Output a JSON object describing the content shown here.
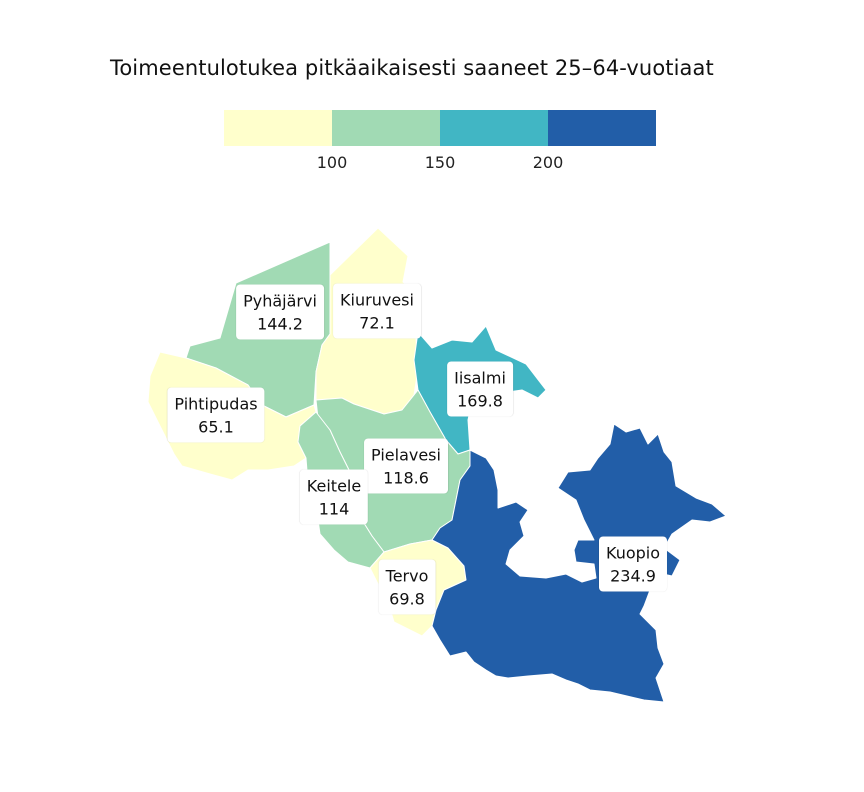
{
  "title": "Toimeentulotukea pitkäaikaisesti saaneet 25–64-vuotiaat",
  "legend": {
    "colors": [
      "#ffffcc",
      "#a1dab4",
      "#41b6c4",
      "#225ea8"
    ],
    "ticks": [
      "100",
      "150",
      "200"
    ]
  },
  "chart_data": {
    "type": "choropleth",
    "title": "Toimeentulotukea pitkäaikaisesti saaneet 25–64-vuotiaat",
    "bins": [
      100,
      150,
      200
    ],
    "regions": [
      {
        "name": "Pyhäjärvi",
        "value": "144.2",
        "color": "#a1dab4"
      },
      {
        "name": "Kiuruvesi",
        "value": "72.1",
        "color": "#ffffcc"
      },
      {
        "name": "Iisalmi",
        "value": "169.8",
        "color": "#41b6c4"
      },
      {
        "name": "Pihtipudas",
        "value": "65.1",
        "color": "#ffffcc"
      },
      {
        "name": "Pielavesi",
        "value": "118.6",
        "color": "#a1dab4"
      },
      {
        "name": "Keitele",
        "value": "114",
        "color": "#a1dab4"
      },
      {
        "name": "Tervo",
        "value": "69.8",
        "color": "#ffffcc"
      },
      {
        "name": "Kuopio",
        "value": "234.9",
        "color": "#225ea8"
      }
    ]
  }
}
